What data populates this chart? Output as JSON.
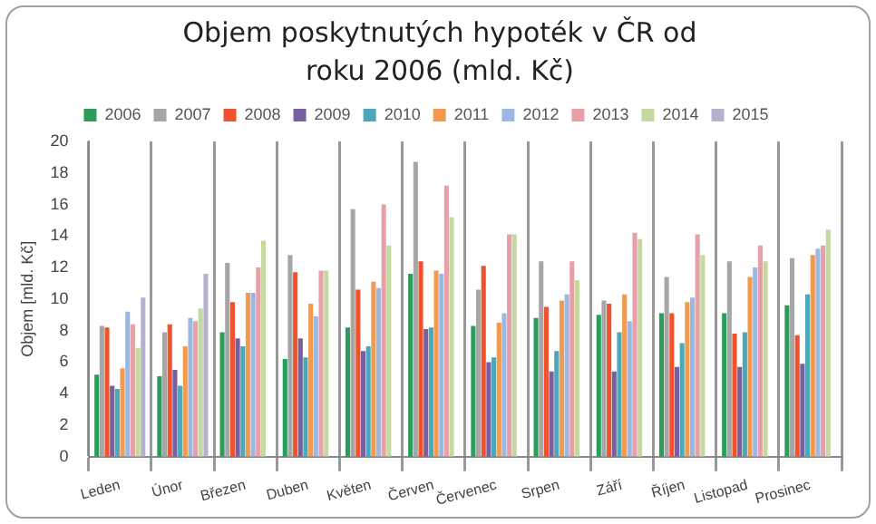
{
  "chart_data": {
    "type": "bar",
    "title": "Objem poskytnutých hypoték v ČR od roku 2006 (mld. Kč)",
    "ylabel": "Objem [mld. Kč]",
    "categories": [
      "Leden",
      "Únor",
      "Březen",
      "Duben",
      "Květen",
      "Červen",
      "Červenec",
      "Srpen",
      "Září",
      "Říjen",
      "Listopad",
      "Prosinec"
    ],
    "series": [
      {
        "name": "2006",
        "color": "#2a9d5c",
        "values": [
          5.2,
          5.1,
          7.9,
          6.2,
          8.2,
          11.6,
          8.3,
          8.8,
          9.0,
          9.1,
          9.1,
          9.6
        ]
      },
      {
        "name": "2007",
        "color": "#a6a6a6",
        "values": [
          8.3,
          7.9,
          12.3,
          12.8,
          15.7,
          18.7,
          10.6,
          12.4,
          9.9,
          11.4,
          12.4,
          12.6
        ]
      },
      {
        "name": "2008",
        "color": "#f0522d",
        "values": [
          8.2,
          8.4,
          9.8,
          11.7,
          10.6,
          12.4,
          12.1,
          9.5,
          9.7,
          9.1,
          7.8,
          7.7
        ]
      },
      {
        "name": "2009",
        "color": "#7a5fa0",
        "values": [
          4.5,
          5.5,
          7.5,
          7.5,
          6.7,
          8.1,
          6.0,
          5.4,
          5.4,
          5.7,
          5.7,
          5.9
        ]
      },
      {
        "name": "2010",
        "color": "#4aa8b8",
        "values": [
          4.3,
          4.5,
          7.0,
          6.3,
          7.0,
          8.2,
          6.3,
          6.7,
          7.9,
          7.2,
          7.9,
          10.3
        ]
      },
      {
        "name": "2011",
        "color": "#f29a4e",
        "values": [
          5.6,
          7.0,
          10.4,
          9.7,
          11.1,
          11.8,
          8.5,
          9.9,
          10.3,
          9.8,
          11.4,
          12.8
        ]
      },
      {
        "name": "2012",
        "color": "#9db8e0",
        "values": [
          9.2,
          8.8,
          10.4,
          8.9,
          10.7,
          11.6,
          9.1,
          10.3,
          8.6,
          10.1,
          12.0,
          13.2
        ]
      },
      {
        "name": "2013",
        "color": "#e8a0a8",
        "values": [
          8.4,
          8.6,
          12.0,
          11.8,
          16.0,
          17.2,
          14.1,
          12.4,
          14.2,
          14.1,
          13.4,
          13.4
        ]
      },
      {
        "name": "2014",
        "color": "#c4d9a0",
        "values": [
          6.9,
          9.4,
          13.7,
          11.8,
          13.4,
          15.2,
          14.1,
          11.2,
          13.8,
          12.8,
          12.4,
          14.4
        ]
      },
      {
        "name": "2015",
        "color": "#b7b0d0",
        "values": [
          10.1,
          11.6,
          null,
          null,
          null,
          null,
          null,
          null,
          null,
          null,
          null,
          null
        ]
      }
    ],
    "ylim": [
      0,
      20
    ],
    "yticks": [
      0,
      2,
      4,
      6,
      8,
      10,
      12,
      14,
      16,
      18,
      20
    ],
    "grid": "x",
    "legend": "top"
  }
}
